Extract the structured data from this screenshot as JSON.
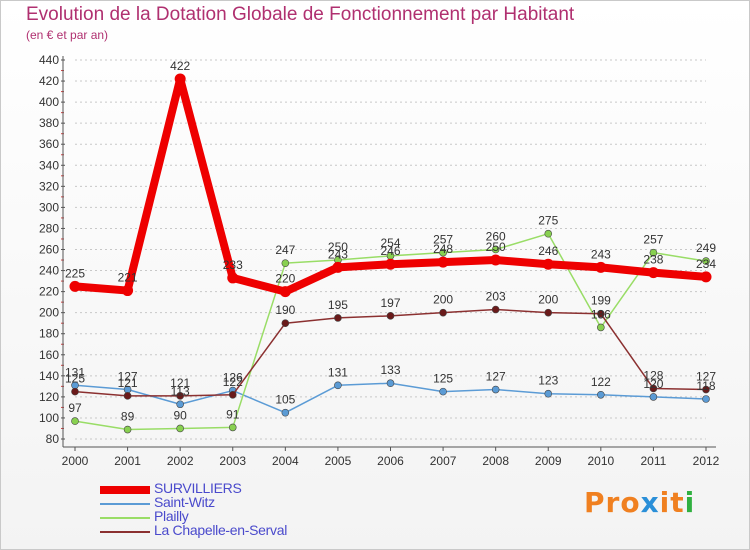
{
  "title": "Evolution de la Dotation Globale de Fonctionnement par Habitant",
  "subtitle": "(en € et par an)",
  "logo": {
    "text": "Proxiti",
    "colors": [
      "#f08020",
      "#f08020",
      "#f08020",
      "#2a8fd8",
      "#f08020",
      "#f08020",
      "#30b040"
    ]
  },
  "chart_data": {
    "type": "line",
    "title": "Evolution de la Dotation Globale de Fonctionnement par Habitant",
    "subtitle": "(en € et par an)",
    "xlabel": "",
    "ylabel": "",
    "x": [
      "2000",
      "2001",
      "2002",
      "2003",
      "2004",
      "2005",
      "2006",
      "2007",
      "2008",
      "2009",
      "2010",
      "2011",
      "2012"
    ],
    "ylim": [
      80,
      440
    ],
    "ytick_step": 20,
    "grid": "dashed-horizontal",
    "legend_position": "bottom-left",
    "series": [
      {
        "name": "SURVILLIERS",
        "color": "#ee0000",
        "marker": "#ee0000",
        "emphasis": "thick",
        "values": [
          225,
          221,
          422,
          233,
          220,
          243,
          246,
          248,
          250,
          246,
          243,
          238,
          234
        ],
        "labels": [
          "225",
          "221",
          "422",
          "233",
          "220",
          "243",
          "246",
          "248",
          "250",
          "246",
          "243",
          "238",
          "234"
        ]
      },
      {
        "name": "Saint-Witz",
        "color": "#5b9bd5",
        "marker": "#5b9bd5",
        "emphasis": "thin",
        "values": [
          131,
          127,
          113,
          126,
          105,
          131,
          133,
          125,
          127,
          123,
          122,
          120,
          118
        ],
        "labels": [
          "131",
          "127",
          "113",
          "126",
          "105",
          "131",
          "133",
          "125",
          "127",
          "123",
          "122",
          "120",
          "118"
        ]
      },
      {
        "name": "Plailly",
        "color": "#99dd66",
        "marker": "#88d050",
        "emphasis": "thin",
        "values": [
          97,
          89,
          90,
          91,
          247,
          250,
          254,
          257,
          260,
          275,
          186,
          257,
          249
        ],
        "labels": [
          "97",
          "89",
          "90",
          "91",
          "247",
          "250",
          "254",
          "257",
          "260",
          "275",
          "186",
          "257",
          "249"
        ]
      },
      {
        "name": "La Chapelle-en-Serval",
        "color": "#8b3030",
        "marker": "#6a1a1a",
        "emphasis": "thin",
        "values": [
          125,
          121,
          121,
          122,
          190,
          195,
          197,
          200,
          203,
          200,
          199,
          128,
          127
        ],
        "labels": [
          "125",
          "121",
          "121",
          "122",
          "190",
          "195",
          "197",
          "200",
          "203",
          "200",
          "199",
          "128",
          "127"
        ]
      }
    ]
  }
}
